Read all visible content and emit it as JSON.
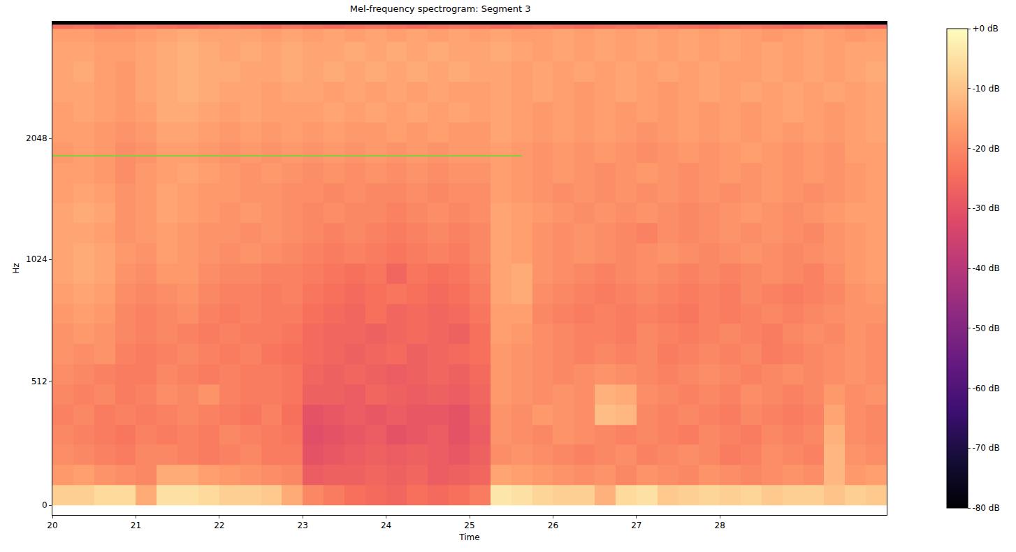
{
  "chart_data": {
    "type": "heatmap",
    "title": "Mel-frequency spectrogram: Segment 3",
    "x_label": "Time",
    "y_label": "Hz",
    "xlim": [
      20,
      30
    ],
    "ylim": [
      -40,
      4000
    ],
    "xticks": [
      20,
      21,
      22,
      23,
      24,
      25,
      26,
      27,
      28
    ],
    "yticks": [
      0,
      512,
      1024,
      2048
    ],
    "x": [
      20.125,
      20.375,
      20.625,
      20.875,
      21.125,
      21.375,
      21.625,
      21.875,
      22.125,
      22.375,
      22.625,
      22.875,
      23.125,
      23.375,
      23.625,
      23.875,
      24.125,
      24.375,
      24.625,
      24.875,
      25.125,
      25.375,
      25.625,
      25.875,
      26.125,
      26.375,
      26.625,
      26.875,
      27.125,
      27.375,
      27.625,
      27.875,
      28.125,
      28.375,
      28.625,
      28.875,
      29.125,
      29.375,
      29.625,
      29.875
    ],
    "y": [
      42,
      125,
      208,
      292,
      375,
      458,
      542,
      625,
      708,
      792,
      875,
      958,
      1059,
      1189,
      1335,
      1498,
      1682,
      1888,
      2119,
      2378,
      2670,
      2997,
      3364,
      3776,
      3900,
      3975
    ],
    "z": [
      [
        -8,
        -8,
        -6,
        -6,
        -14,
        -5,
        -5,
        -6,
        -8,
        -8,
        -9,
        -14,
        -20,
        -22,
        -24,
        -25,
        -26,
        -24,
        -25,
        -24,
        -22,
        -4,
        -5,
        -7,
        -8,
        -8,
        -13,
        -6,
        -5,
        -9,
        -8,
        -7,
        -8,
        -7,
        -9,
        -8,
        -8,
        -10,
        -8,
        -9
      ],
      [
        -17,
        -16,
        -18,
        -19,
        -20,
        -14,
        -14,
        -16,
        -17,
        -18,
        -19,
        -20,
        -28,
        -27,
        -27,
        -26,
        -27,
        -26,
        -28,
        -27,
        -26,
        -15,
        -16,
        -17,
        -18,
        -19,
        -18,
        -20,
        -18,
        -19,
        -20,
        -18,
        -19,
        -20,
        -19,
        -18,
        -19,
        -12,
        -17,
        -16
      ],
      [
        -19,
        -20,
        -21,
        -22,
        -20,
        -20,
        -21,
        -22,
        -21,
        -20,
        -22,
        -22,
        -30,
        -29,
        -28,
        -27,
        -28,
        -27,
        -28,
        -29,
        -27,
        -19,
        -18,
        -19,
        -20,
        -21,
        -20,
        -19,
        -21,
        -20,
        -19,
        -20,
        -22,
        -21,
        -19,
        -20,
        -21,
        -12,
        -18,
        -19
      ],
      [
        -20,
        -21,
        -22,
        -23,
        -21,
        -22,
        -21,
        -22,
        -20,
        -21,
        -22,
        -23,
        -31,
        -30,
        -29,
        -28,
        -30,
        -29,
        -28,
        -30,
        -28,
        -18,
        -19,
        -20,
        -18,
        -19,
        -20,
        -21,
        -20,
        -21,
        -22,
        -20,
        -21,
        -22,
        -20,
        -21,
        -20,
        -13,
        -19,
        -20
      ],
      [
        -21,
        -20,
        -22,
        -21,
        -22,
        -21,
        -20,
        -21,
        -22,
        -23,
        -21,
        -24,
        -30,
        -29,
        -28,
        -29,
        -28,
        -29,
        -29,
        -30,
        -27,
        -18,
        -19,
        -17,
        -18,
        -19,
        -11,
        -12,
        -20,
        -21,
        -20,
        -21,
        -22,
        -20,
        -21,
        -22,
        -21,
        -15,
        -19,
        -20
      ],
      [
        -20,
        -21,
        -20,
        -22,
        -21,
        -19,
        -20,
        -18,
        -21,
        -22,
        -22,
        -23,
        -27,
        -27,
        -28,
        -26,
        -27,
        -28,
        -27,
        -28,
        -26,
        -17,
        -18,
        -19,
        -18,
        -19,
        -13,
        -14,
        -19,
        -20,
        -21,
        -20,
        -21,
        -19,
        -20,
        -21,
        -20,
        -17,
        -19,
        -18
      ],
      [
        -19,
        -20,
        -21,
        -22,
        -22,
        -20,
        -21,
        -22,
        -21,
        -22,
        -22,
        -23,
        -26,
        -27,
        -26,
        -27,
        -28,
        -27,
        -26,
        -27,
        -25,
        -17,
        -18,
        -19,
        -20,
        -19,
        -18,
        -19,
        -20,
        -21,
        -20,
        -19,
        -20,
        -21,
        -20,
        -19,
        -20,
        -19,
        -18,
        -19
      ],
      [
        -18,
        -19,
        -18,
        -21,
        -22,
        -21,
        -20,
        -21,
        -22,
        -21,
        -23,
        -24,
        -25,
        -26,
        -27,
        -26,
        -25,
        -27,
        -26,
        -25,
        -24,
        -17,
        -18,
        -19,
        -20,
        -21,
        -20,
        -21,
        -20,
        -22,
        -21,
        -20,
        -21,
        -20,
        -22,
        -21,
        -20,
        -19,
        -18,
        -19
      ],
      [
        -18,
        -17,
        -18,
        -20,
        -21,
        -20,
        -21,
        -22,
        -21,
        -22,
        -22,
        -23,
        -25,
        -26,
        -26,
        -27,
        -26,
        -25,
        -26,
        -27,
        -24,
        -16,
        -17,
        -19,
        -20,
        -21,
        -21,
        -22,
        -20,
        -21,
        -22,
        -21,
        -20,
        -21,
        -22,
        -20,
        -19,
        -20,
        -18,
        -19
      ],
      [
        -17,
        -16,
        -17,
        -20,
        -21,
        -20,
        -19,
        -21,
        -22,
        -21,
        -22,
        -22,
        -24,
        -25,
        -26,
        -24,
        -26,
        -25,
        -26,
        -25,
        -23,
        -16,
        -16,
        -20,
        -21,
        -22,
        -21,
        -22,
        -21,
        -22,
        -23,
        -21,
        -22,
        -21,
        -20,
        -21,
        -20,
        -19,
        -18,
        -18
      ],
      [
        -16,
        -15,
        -16,
        -19,
        -20,
        -19,
        -18,
        -20,
        -21,
        -21,
        -22,
        -21,
        -23,
        -24,
        -25,
        -24,
        -23,
        -24,
        -25,
        -24,
        -22,
        -15,
        -14,
        -19,
        -20,
        -21,
        -22,
        -21,
        -20,
        -21,
        -22,
        -21,
        -22,
        -20,
        -21,
        -22,
        -21,
        -20,
        -18,
        -17
      ],
      [
        -15,
        -14,
        -15,
        -18,
        -19,
        -17,
        -17,
        -19,
        -20,
        -20,
        -21,
        -21,
        -22,
        -23,
        -24,
        -23,
        -26,
        -23,
        -24,
        -23,
        -21,
        -15,
        -14,
        -18,
        -19,
        -20,
        -21,
        -20,
        -19,
        -20,
        -21,
        -20,
        -21,
        -20,
        -19,
        -20,
        -21,
        -19,
        -17,
        -16
      ],
      [
        -15,
        -14,
        -15,
        -17,
        -18,
        -16,
        -17,
        -18,
        -19,
        -18,
        -19,
        -20,
        -21,
        -22,
        -21,
        -22,
        -23,
        -22,
        -21,
        -22,
        -20,
        -15,
        -16,
        -18,
        -19,
        -18,
        -19,
        -20,
        -19,
        -18,
        -19,
        -20,
        -19,
        -18,
        -19,
        -20,
        -19,
        -18,
        -17,
        -16
      ],
      [
        -15,
        -15,
        -16,
        -18,
        -17,
        -16,
        -17,
        -18,
        -18,
        -19,
        -18,
        -19,
        -20,
        -21,
        -20,
        -21,
        -22,
        -21,
        -20,
        -21,
        -20,
        -15,
        -16,
        -18,
        -19,
        -18,
        -19,
        -20,
        -21,
        -19,
        -20,
        -19,
        -18,
        -19,
        -18,
        -19,
        -20,
        -18,
        -17,
        -16
      ],
      [
        -15,
        -14,
        -15,
        -18,
        -17,
        -15,
        -16,
        -17,
        -18,
        -17,
        -18,
        -19,
        -20,
        -19,
        -20,
        -20,
        -21,
        -20,
        -19,
        -20,
        -19,
        -15,
        -16,
        -17,
        -18,
        -19,
        -18,
        -19,
        -18,
        -19,
        -20,
        -19,
        -18,
        -17,
        -18,
        -19,
        -18,
        -17,
        -16,
        -16
      ],
      [
        -16,
        -15,
        -16,
        -18,
        -17,
        -15,
        -16,
        -17,
        -17,
        -18,
        -18,
        -19,
        -19,
        -20,
        -19,
        -20,
        -20,
        -19,
        -20,
        -19,
        -19,
        -16,
        -17,
        -18,
        -19,
        -18,
        -19,
        -18,
        -19,
        -18,
        -19,
        -18,
        -19,
        -18,
        -17,
        -18,
        -19,
        -18,
        -17,
        -16
      ],
      [
        -16,
        -16,
        -17,
        -19,
        -17,
        -16,
        -15,
        -16,
        -17,
        -18,
        -17,
        -18,
        -19,
        -18,
        -19,
        -18,
        -19,
        -18,
        -19,
        -18,
        -18,
        -16,
        -17,
        -18,
        -17,
        -18,
        -19,
        -18,
        -17,
        -18,
        -19,
        -18,
        -17,
        -18,
        -17,
        -18,
        -17,
        -18,
        -17,
        -16
      ],
      [
        -17,
        -16,
        -17,
        -19,
        -18,
        -16,
        -16,
        -17,
        -18,
        -17,
        -18,
        -17,
        -18,
        -17,
        -18,
        -17,
        -18,
        -17,
        -18,
        -17,
        -17,
        -16,
        -17,
        -18,
        -17,
        -18,
        -17,
        -18,
        -19,
        -18,
        -17,
        -18,
        -17,
        -16,
        -17,
        -18,
        -17,
        -18,
        -16,
        -16
      ],
      [
        -16,
        -16,
        -17,
        -18,
        -17,
        -15,
        -15,
        -16,
        -17,
        -16,
        -17,
        -16,
        -17,
        -16,
        -17,
        -17,
        -16,
        -17,
        -16,
        -17,
        -17,
        -15,
        -16,
        -17,
        -16,
        -17,
        -16,
        -17,
        -18,
        -17,
        -16,
        -17,
        -16,
        -17,
        -16,
        -17,
        -16,
        -17,
        -16,
        -15
      ],
      [
        -16,
        -15,
        -16,
        -17,
        -16,
        -14,
        -14,
        -15,
        -16,
        -15,
        -16,
        -16,
        -16,
        -15,
        -16,
        -15,
        -16,
        -15,
        -16,
        -15,
        -16,
        -15,
        -16,
        -17,
        -16,
        -17,
        -16,
        -17,
        -16,
        -17,
        -16,
        -17,
        -16,
        -17,
        -16,
        -15,
        -16,
        -17,
        -16,
        -15
      ],
      [
        -15,
        -15,
        -16,
        -17,
        -15,
        -14,
        -13,
        -14,
        -15,
        -15,
        -16,
        -15,
        -15,
        -16,
        -15,
        -16,
        -15,
        -16,
        -15,
        -16,
        -16,
        -15,
        -16,
        -15,
        -16,
        -17,
        -16,
        -15,
        -16,
        -17,
        -16,
        -15,
        -16,
        -15,
        -16,
        -15,
        -16,
        -15,
        -16,
        -15
      ],
      [
        -15,
        -14,
        -16,
        -17,
        -15,
        -14,
        -13,
        -14,
        -14,
        -15,
        -15,
        -14,
        -15,
        -14,
        -15,
        -14,
        -15,
        -14,
        -15,
        -14,
        -15,
        -15,
        -16,
        -15,
        -16,
        -15,
        -16,
        -15,
        -16,
        -15,
        -16,
        -15,
        -16,
        -16,
        -15,
        -16,
        -15,
        -16,
        -15,
        -14
      ],
      [
        -15,
        -15,
        -16,
        -16,
        -15,
        -14,
        -13,
        -14,
        -15,
        -14,
        -15,
        -14,
        -15,
        -15,
        -14,
        -15,
        -14,
        -15,
        -14,
        -15,
        -15,
        -14,
        -15,
        -16,
        -15,
        -16,
        -15,
        -16,
        -15,
        -16,
        -15,
        -16,
        -15,
        -16,
        -15,
        -16,
        -15,
        -16,
        -15,
        -15
      ],
      [
        -16,
        -16,
        -17,
        -17,
        -16,
        -15,
        -14,
        -15,
        -15,
        -15,
        -16,
        -15,
        -16,
        -15,
        -16,
        -15,
        -16,
        -15,
        -16,
        -15,
        -16,
        -15,
        -16,
        -16,
        -15,
        -16,
        -15,
        -16,
        -15,
        -16,
        -15,
        -16,
        -15,
        -16,
        -17,
        -16,
        -15,
        -16,
        -17,
        -16
      ],
      [
        -24,
        -23,
        -25,
        -24,
        -23,
        -24,
        -25,
        -24,
        -23,
        -24,
        -25,
        -23,
        -24,
        -25,
        -24,
        -23,
        -24,
        -25,
        -24,
        -23,
        -24,
        -25,
        -24,
        -23,
        -24,
        -25,
        -24,
        -23,
        -24,
        -23,
        -24,
        -25,
        -24,
        -23,
        -24,
        -25,
        -24,
        -23,
        -24,
        -25
      ],
      [
        -80,
        -80,
        -80,
        -80,
        -80,
        -80,
        -80,
        -80,
        -80,
        -80,
        -80,
        -80,
        -80,
        -80,
        -80,
        -80,
        -80,
        -80,
        -80,
        -80,
        -80,
        -80,
        -80,
        -80,
        -80,
        -80,
        -80,
        -80,
        -80,
        -80,
        -80,
        -80,
        -80,
        -80,
        -80,
        -80,
        -80,
        -80,
        -80,
        -80
      ]
    ],
    "colorbar": {
      "range": [
        -80,
        0
      ],
      "ticks": [
        {
          "value": 0,
          "label": "+0 dB"
        },
        {
          "value": -10,
          "label": "-10 dB"
        },
        {
          "value": -20,
          "label": "-20 dB"
        },
        {
          "value": -30,
          "label": "-30 dB"
        },
        {
          "value": -40,
          "label": "-40 dB"
        },
        {
          "value": -50,
          "label": "-50 dB"
        },
        {
          "value": -60,
          "label": "-60 dB"
        },
        {
          "value": -70,
          "label": "-70 dB"
        },
        {
          "value": -80,
          "label": "-80 dB"
        }
      ]
    },
    "series": [
      {
        "type": "line",
        "color": "#84cc40",
        "x": [
          20,
          25.63
        ],
        "y": [
          1854,
          1854
        ]
      }
    ]
  }
}
